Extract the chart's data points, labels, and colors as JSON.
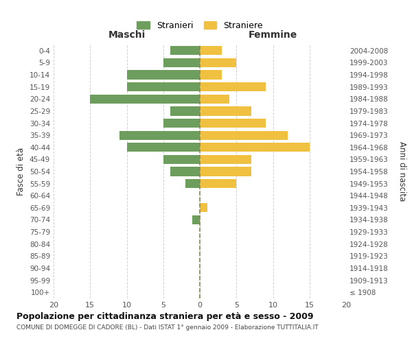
{
  "age_groups": [
    "0-4",
    "5-9",
    "10-14",
    "15-19",
    "20-24",
    "25-29",
    "30-34",
    "35-39",
    "40-44",
    "45-49",
    "50-54",
    "55-59",
    "60-64",
    "65-69",
    "70-74",
    "75-79",
    "80-84",
    "85-89",
    "90-94",
    "95-99",
    "100+"
  ],
  "birth_years": [
    "2004-2008",
    "1999-2003",
    "1994-1998",
    "1989-1993",
    "1984-1988",
    "1979-1983",
    "1974-1978",
    "1969-1973",
    "1964-1968",
    "1959-1963",
    "1954-1958",
    "1949-1953",
    "1944-1948",
    "1939-1943",
    "1934-1938",
    "1929-1933",
    "1924-1928",
    "1919-1923",
    "1914-1918",
    "1909-1913",
    "≤ 1908"
  ],
  "maschi": [
    4,
    5,
    10,
    10,
    15,
    4,
    5,
    11,
    10,
    5,
    4,
    2,
    0,
    0,
    1,
    0,
    0,
    0,
    0,
    0,
    0
  ],
  "femmine": [
    3,
    5,
    3,
    9,
    4,
    7,
    9,
    12,
    15,
    7,
    7,
    5,
    0,
    1,
    0,
    0,
    0,
    0,
    0,
    0,
    0
  ],
  "maschi_color": "#6e9e5e",
  "femmine_color": "#f0c040",
  "background_color": "#ffffff",
  "grid_color": "#d0d0d0",
  "title": "Popolazione per cittadinanza straniera per età e sesso - 2009",
  "subtitle": "COMUNE DI DOMEGGE DI CADORE (BL) - Dati ISTAT 1° gennaio 2009 - Elaborazione TUTTITALIA.IT",
  "ylabel_left": "Fasce di età",
  "ylabel_right": "Anni di nascita",
  "xlabel_left": "Maschi",
  "xlabel_right": "Femmine",
  "legend_maschi": "Stranieri",
  "legend_femmine": "Straniere",
  "xlim": 20
}
